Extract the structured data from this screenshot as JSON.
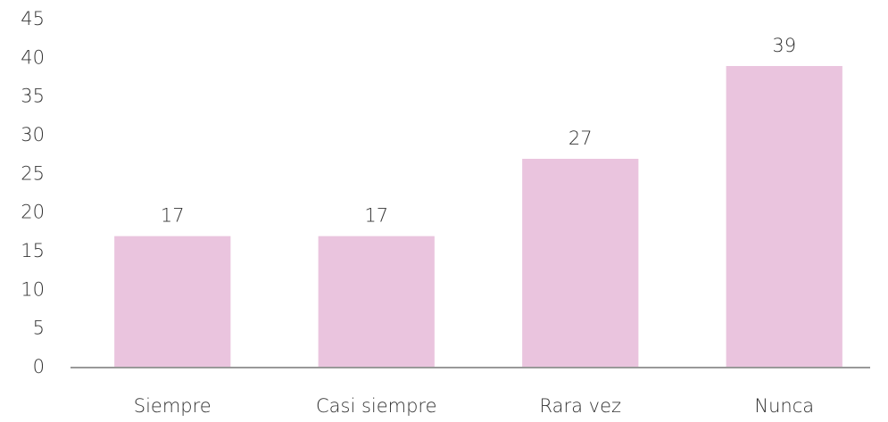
{
  "chart_data": {
    "type": "bar",
    "categories": [
      "Siempre",
      "Casi siempre",
      "Rara vez",
      "Nunca"
    ],
    "values": [
      17,
      17,
      27,
      39
    ],
    "color": "#eac4de",
    "ylim": [
      0,
      45
    ],
    "yticks": [
      0,
      5,
      10,
      15,
      20,
      25,
      30,
      35,
      40,
      45
    ],
    "grid": false
  }
}
